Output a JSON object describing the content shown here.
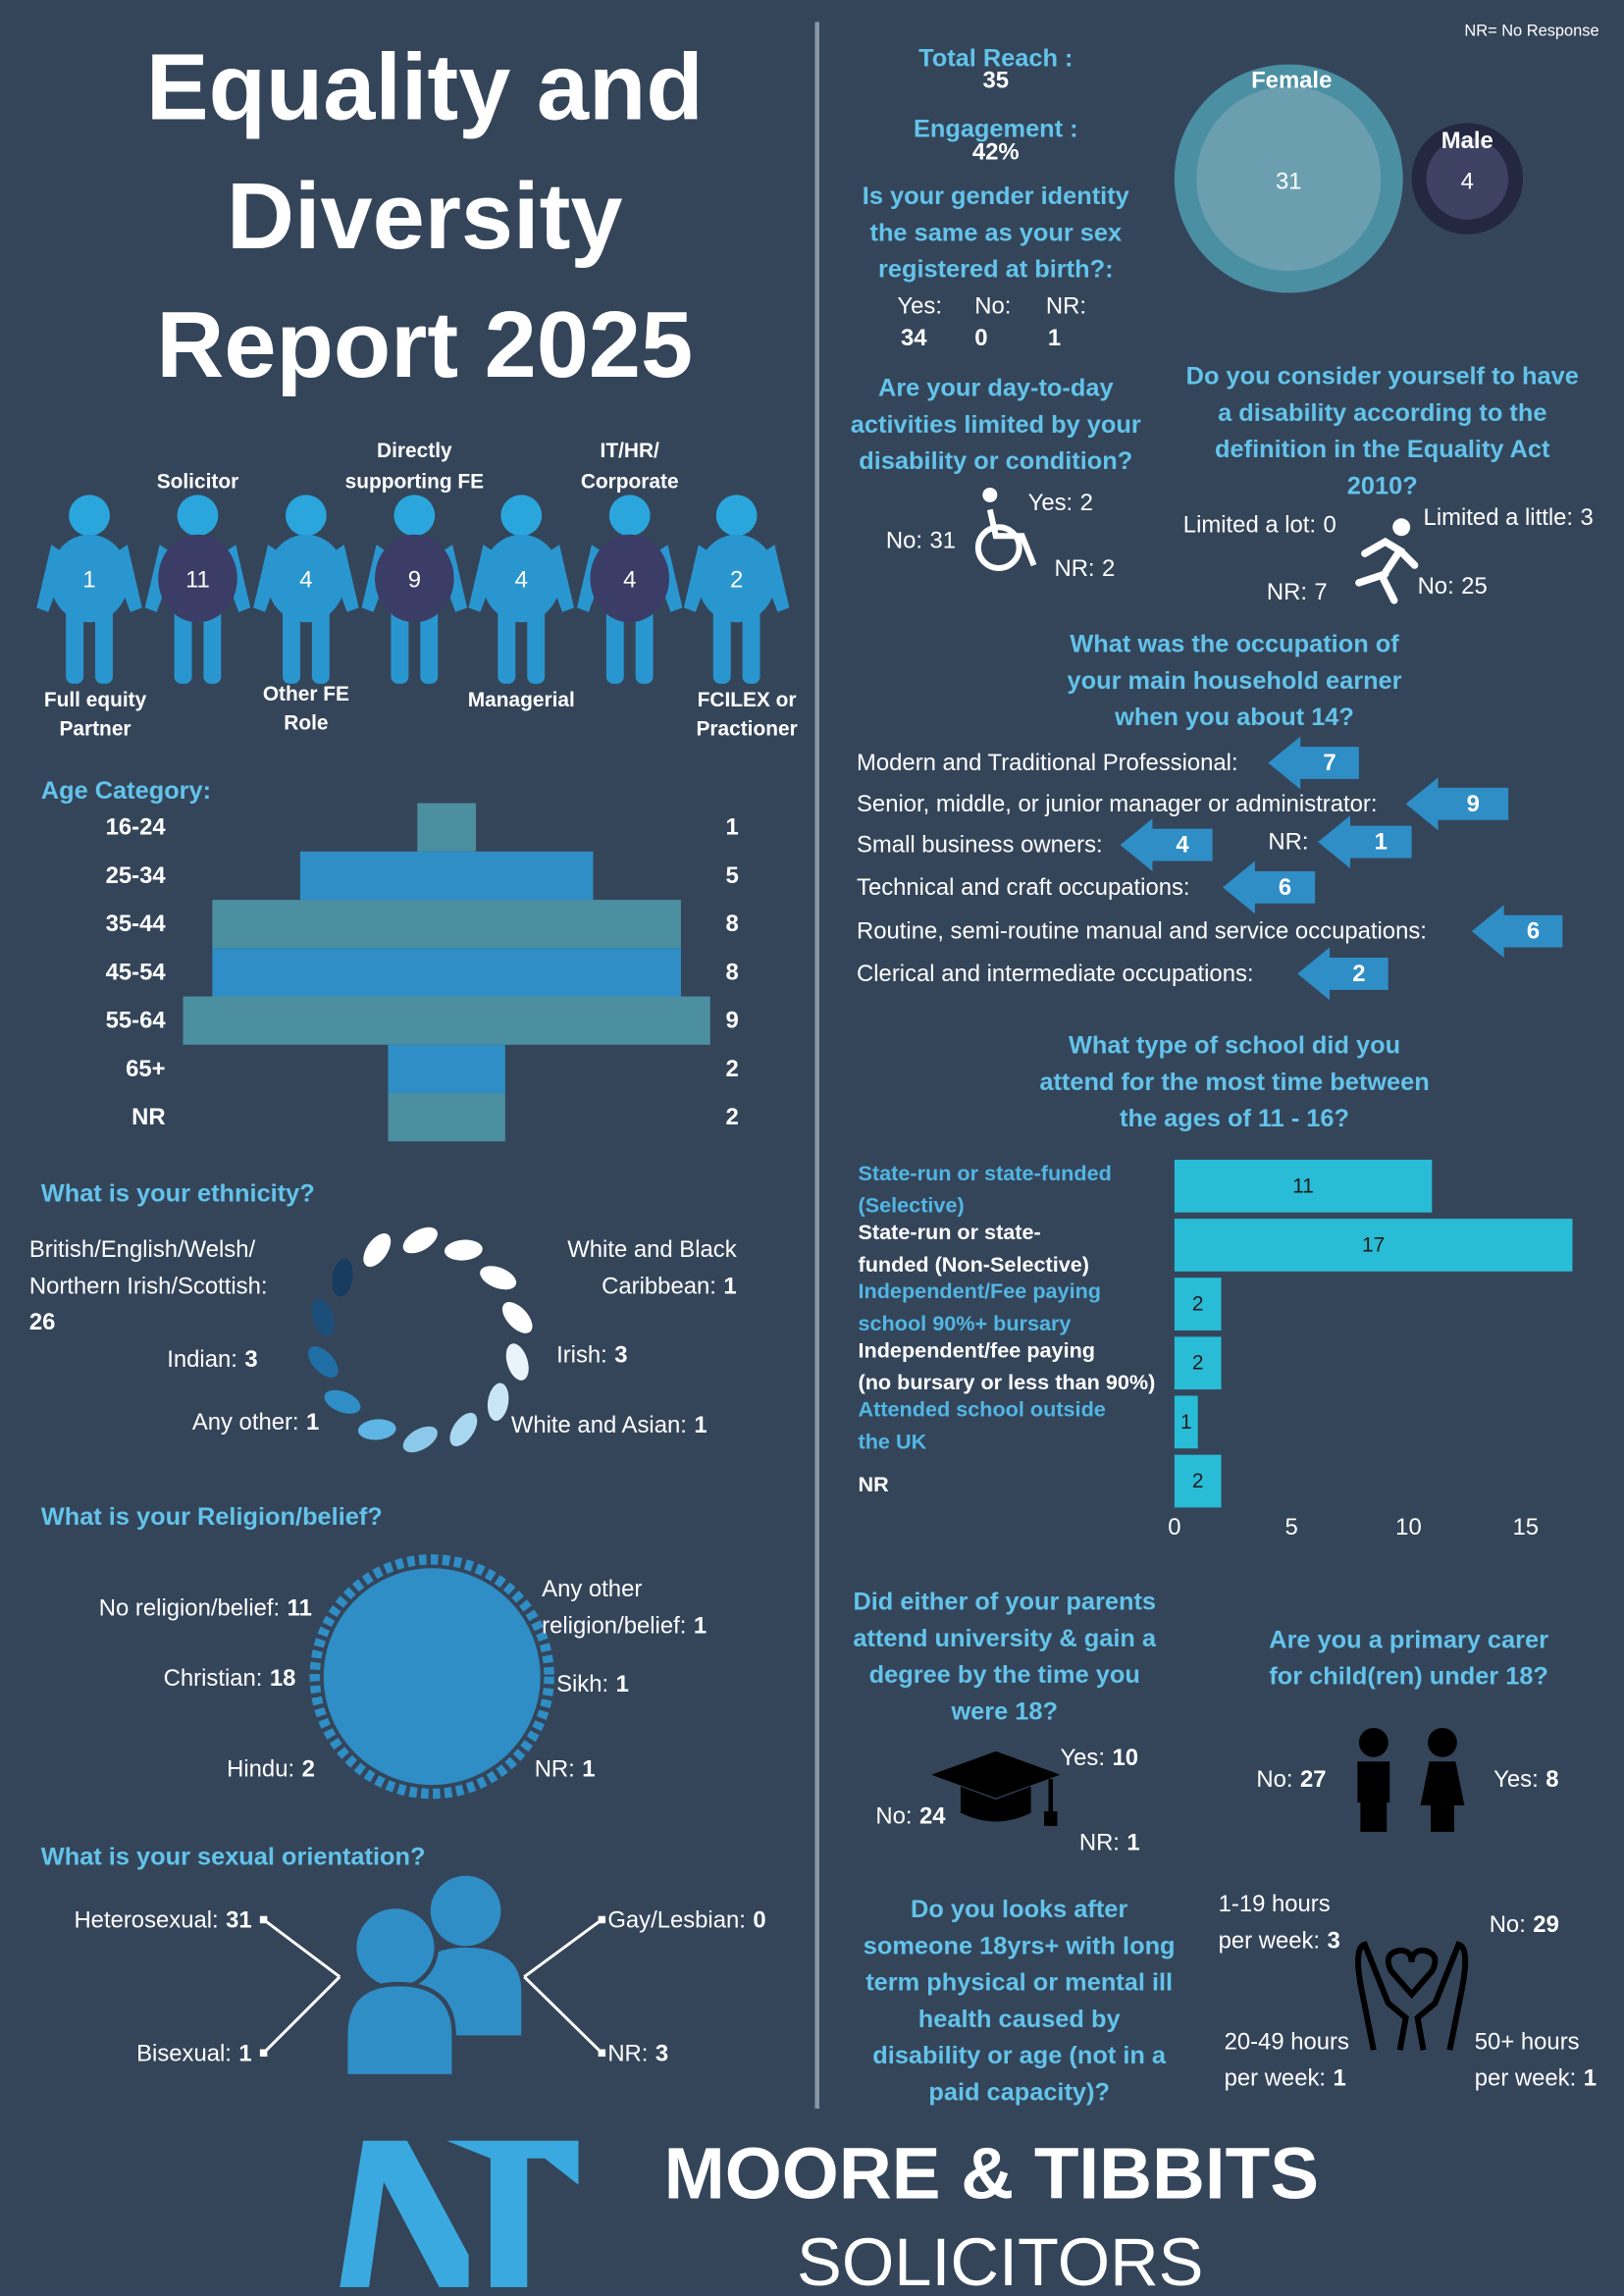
{
  "title": [
    "Equality and",
    "Diversity",
    "Report 2025"
  ],
  "note": "NR= No Response",
  "reach": {
    "label": "Total Reach :",
    "value": 35
  },
  "engagement": {
    "label": "Engagement :",
    "value": "42%"
  },
  "gender": {
    "female": {
      "label": "Female",
      "value": 31
    },
    "male": {
      "label": "Male",
      "value": 4
    }
  },
  "gender_identity": {
    "question": [
      "Is your gender identity",
      "the same as your sex",
      "registered at birth?:"
    ],
    "answers": [
      {
        "label": "Yes:",
        "value": 34
      },
      {
        "label": "No:",
        "value": 0
      },
      {
        "label": "NR:",
        "value": 1
      }
    ]
  },
  "limited": {
    "question": [
      "Are your day-to-day",
      "activities limited by your",
      "disability or condition?"
    ],
    "answers": [
      {
        "label": "Yes:",
        "value": 2
      },
      {
        "label": "No:",
        "value": 31
      },
      {
        "label": "NR:",
        "value": 2
      }
    ]
  },
  "disability": {
    "question": [
      "Do you consider yourself to have",
      "a disability according to the",
      "definition in the Equality Act",
      "2010?"
    ],
    "answers": [
      {
        "label": "Limited a lot:",
        "value": 0
      },
      {
        "label": "Limited a little:",
        "value": 3
      },
      {
        "label": "NR:",
        "value": 7
      },
      {
        "label": "No:",
        "value": 25
      }
    ]
  },
  "roles": [
    {
      "label": [
        "Full equity",
        "Partner"
      ],
      "value": 1
    },
    {
      "label": [
        "Solicitor"
      ],
      "value": 11
    },
    {
      "label": [
        "Other FE",
        "Role"
      ],
      "value": 4
    },
    {
      "label": [
        "Directly",
        "supporting FE"
      ],
      "value": 9
    },
    {
      "label": [
        "Managerial"
      ],
      "value": 4
    },
    {
      "label": [
        "IT/HR/",
        "Corporate"
      ],
      "value": 4
    },
    {
      "label": [
        "FCILEX or",
        "Practioner"
      ],
      "value": 2
    }
  ],
  "age": {
    "title": "Age Category:",
    "rows": [
      {
        "label": "16-24",
        "value": 1
      },
      {
        "label": "25-34",
        "value": 5
      },
      {
        "label": "35-44",
        "value": 8
      },
      {
        "label": "45-54",
        "value": 8
      },
      {
        "label": "55-64",
        "value": 9
      },
      {
        "label": "65+",
        "value": 2
      },
      {
        "label": "NR",
        "value": 2
      }
    ]
  },
  "occupation": {
    "question": [
      "What was the occupation of",
      "your main household earner",
      "when you about 14?"
    ],
    "items": [
      {
        "label": "Modern and Traditional Professional:",
        "value": 7
      },
      {
        "label": "Senior, middle, or junior manager or administrator:",
        "value": 9
      },
      {
        "label": "Small business owners:",
        "value": 4
      },
      {
        "label": "NR:",
        "value": 1
      },
      {
        "label": "Technical and craft occupations:",
        "value": 6
      },
      {
        "label": "Routine, semi-routine manual and service occupations:",
        "value": 6
      },
      {
        "label": "Clerical and intermediate occupations:",
        "value": 2
      }
    ]
  },
  "school": {
    "question": [
      "What type of school did you",
      "attend for the most time between",
      "the ages of 11 - 16?"
    ],
    "categories": [
      [
        "State-run or state-funded",
        "(Selective)"
      ],
      [
        "State-run or state-",
        "funded (Non-Selective)"
      ],
      [
        "Independent/Fee paying",
        "school 90%+ bursary"
      ],
      [
        "Independent/fee paying",
        "(no bursary or less than 90%)"
      ],
      [
        "Attended school outside",
        "the UK"
      ],
      [
        "NR"
      ]
    ],
    "values": [
      11,
      17,
      2,
      2,
      1,
      2
    ],
    "xlim": [
      0,
      17.2
    ],
    "xticks": [
      0,
      5,
      10,
      15
    ]
  },
  "ethnicity": {
    "title": "What is your ethnicity?",
    "items": [
      {
        "label": [
          "British/English/Welsh/",
          "Northern Irish/Scottish:"
        ],
        "value": 26
      },
      {
        "label": [
          "White and Black",
          "Caribbean:"
        ],
        "value": 1
      },
      {
        "label": [
          "Indian:"
        ],
        "value": 3
      },
      {
        "label": [
          "Irish:"
        ],
        "value": 3
      },
      {
        "label": [
          "Any other:"
        ],
        "value": 1
      },
      {
        "label": [
          "White and Asian:"
        ],
        "value": 1
      }
    ]
  },
  "religion": {
    "title": "What is your Religion/belief?",
    "items": [
      {
        "label": [
          "No religion/belief:"
        ],
        "value": 11
      },
      {
        "label": [
          "Any other",
          "religion/belief:"
        ],
        "value": 1
      },
      {
        "label": [
          "Christian:"
        ],
        "value": 18
      },
      {
        "label": [
          "Sikh:"
        ],
        "value": 1
      },
      {
        "label": [
          "Hindu:"
        ],
        "value": 2
      },
      {
        "label": [
          "NR:"
        ],
        "value": 1
      }
    ]
  },
  "sexual_orientation": {
    "title": "What is your sexual orientation?",
    "items": [
      {
        "label": [
          "Heterosexual:"
        ],
        "value": 31
      },
      {
        "label": [
          "Gay/Lesbian:"
        ],
        "value": 0
      },
      {
        "label": [
          "Bisexual:"
        ],
        "value": 1
      },
      {
        "label": [
          "NR:"
        ],
        "value": 3
      }
    ]
  },
  "parents_university": {
    "question": [
      "Did either of your parents",
      "attend university & gain a",
      "degree by the time you",
      "were 18?"
    ],
    "items": [
      {
        "label": [
          "Yes:"
        ],
        "value": 10
      },
      {
        "label": [
          "No:"
        ],
        "value": 24
      },
      {
        "label": [
          "NR:"
        ],
        "value": 1
      }
    ]
  },
  "primary_carer": {
    "question": [
      "Are you a primary carer",
      "for child(ren) under 18?"
    ],
    "items": [
      {
        "label": [
          "No:"
        ],
        "value": 27
      },
      {
        "label": [
          "Yes:"
        ],
        "value": 8
      }
    ]
  },
  "carer": {
    "question": [
      "Do you looks after",
      "someone 18yrs+ with long",
      "term physical or mental ill",
      "health caused by",
      "disability or age (not in a",
      "paid capacity)?"
    ],
    "items": [
      {
        "label": [
          "No:"
        ],
        "value": 29
      },
      {
        "label": [
          "1-19 hours",
          "per week:"
        ],
        "value": 3
      },
      {
        "label": [
          "20-49 hours",
          "per week:"
        ],
        "value": 1
      },
      {
        "label": [
          "50+ hours",
          "per week:"
        ],
        "value": 1
      }
    ]
  },
  "footer": {
    "brand": "MOORE & TIBBITS",
    "sub": "SOLICITORS"
  }
}
